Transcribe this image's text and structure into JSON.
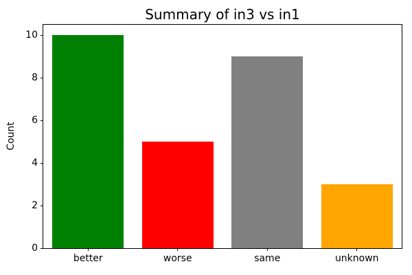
{
  "chart_data": {
    "type": "bar",
    "title": "Summary of in3 vs in1",
    "xlabel": "",
    "ylabel": "Count",
    "categories": [
      "better",
      "worse",
      "same",
      "unknown"
    ],
    "values": [
      10,
      5,
      9,
      3
    ],
    "bar_colors": [
      "#008000",
      "#ff0000",
      "#808080",
      "#ffa500"
    ],
    "ylim": [
      0,
      10.5
    ],
    "yticks": [
      0,
      2,
      4,
      6,
      8,
      10
    ],
    "grid": false,
    "legend": "none",
    "background_color": "#ffffff",
    "axis_color": "#000000"
  }
}
